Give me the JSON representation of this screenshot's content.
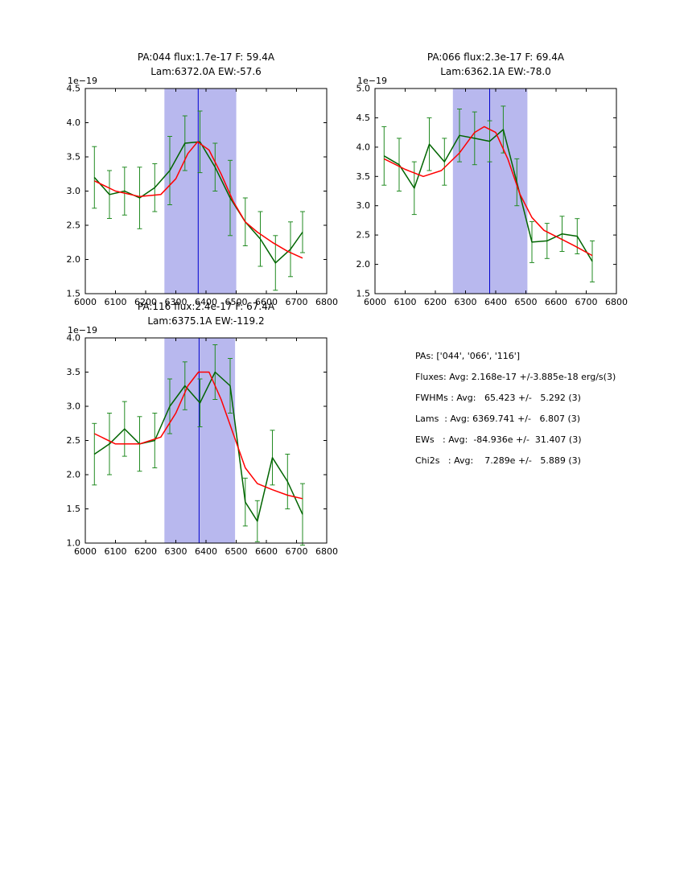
{
  "figure": {
    "background": "#ffffff"
  },
  "colors": {
    "data_line": "#006400",
    "error_bar": "#228b22",
    "fit_line": "#ff0000",
    "band_fill": "#b8b8ee",
    "vline": "#0000cd",
    "frame": "#000000",
    "text": "#000000"
  },
  "chart_data": [
    {
      "type": "line",
      "title_line1": "PA:044 flux:1.7e-17 F: 59.4A",
      "title_line2": "Lam:6372.0A EW:-57.6",
      "offset_label": "1e−19",
      "xlim": [
        6000,
        6800
      ],
      "ylim": [
        1.5,
        4.5
      ],
      "xticks": [
        "6000",
        "6100",
        "6200",
        "6300",
        "6400",
        "6500",
        "6600",
        "6700",
        "6800"
      ],
      "yticks": [
        "1.5",
        "2.0",
        "2.5",
        "3.0",
        "3.5",
        "4.0",
        "4.5"
      ],
      "band": [
        6262,
        6500
      ],
      "vline": 6374,
      "legend": "none",
      "series": [
        {
          "name": "spectrum",
          "color_key": "data_line",
          "x": [
            6030,
            6080,
            6130,
            6180,
            6230,
            6280,
            6330,
            6380,
            6430,
            6480,
            6530,
            6580,
            6630,
            6680,
            6720
          ],
          "y": [
            3.2,
            2.95,
            3.0,
            2.9,
            3.05,
            3.3,
            3.7,
            3.72,
            3.35,
            2.9,
            2.55,
            2.3,
            1.95,
            2.15,
            2.4
          ],
          "yerr": [
            0.45,
            0.35,
            0.35,
            0.45,
            0.35,
            0.5,
            0.4,
            0.45,
            0.35,
            0.55,
            0.35,
            0.4,
            0.4,
            0.4,
            0.3
          ]
        },
        {
          "name": "fit",
          "color_key": "fit_line",
          "x": [
            6030,
            6100,
            6180,
            6250,
            6300,
            6340,
            6372,
            6410,
            6450,
            6490,
            6530,
            6570,
            6620,
            6670,
            6720
          ],
          "y": [
            3.15,
            3.0,
            2.92,
            2.95,
            3.18,
            3.55,
            3.72,
            3.6,
            3.25,
            2.85,
            2.55,
            2.4,
            2.25,
            2.12,
            2.02
          ]
        }
      ]
    },
    {
      "type": "line",
      "title_line1": "PA:066 flux:2.3e-17 F: 69.4A",
      "title_line2": "Lam:6362.1A EW:-78.0",
      "offset_label": "1e−19",
      "xlim": [
        6000,
        6800
      ],
      "ylim": [
        1.5,
        5.0
      ],
      "xticks": [
        "6000",
        "6100",
        "6200",
        "6300",
        "6400",
        "6500",
        "6600",
        "6700",
        "6800"
      ],
      "yticks": [
        "1.5",
        "2.0",
        "2.5",
        "3.0",
        "3.5",
        "4.0",
        "4.5",
        "5.0"
      ],
      "band": [
        6258,
        6505
      ],
      "vline": 6380,
      "legend": "none",
      "series": [
        {
          "name": "spectrum",
          "color_key": "data_line",
          "x": [
            6030,
            6080,
            6130,
            6180,
            6230,
            6280,
            6330,
            6380,
            6425,
            6470,
            6520,
            6570,
            6620,
            6670,
            6720
          ],
          "y": [
            3.85,
            3.7,
            3.3,
            4.05,
            3.75,
            4.2,
            4.15,
            4.1,
            4.3,
            3.4,
            2.38,
            2.4,
            2.52,
            2.48,
            2.05
          ],
          "yerr": [
            0.5,
            0.45,
            0.45,
            0.45,
            0.4,
            0.45,
            0.45,
            0.35,
            0.4,
            0.4,
            0.35,
            0.3,
            0.3,
            0.3,
            0.35
          ]
        },
        {
          "name": "fit",
          "color_key": "fit_line",
          "x": [
            6030,
            6100,
            6160,
            6220,
            6280,
            6330,
            6362,
            6400,
            6440,
            6480,
            6520,
            6560,
            6610,
            6660,
            6720
          ],
          "y": [
            3.8,
            3.62,
            3.5,
            3.6,
            3.9,
            4.25,
            4.35,
            4.25,
            3.8,
            3.2,
            2.8,
            2.58,
            2.45,
            2.32,
            2.15
          ]
        }
      ]
    },
    {
      "type": "line",
      "title_line1": "PA:116 flux:2.4e-17 F: 67.4A",
      "title_line2": "Lam:6375.1A EW:-119.2",
      "offset_label": "1e−19",
      "xlim": [
        6000,
        6800
      ],
      "ylim": [
        1.0,
        4.0
      ],
      "xticks": [
        "6000",
        "6100",
        "6200",
        "6300",
        "6400",
        "6500",
        "6600",
        "6700",
        "6800"
      ],
      "yticks": [
        "1.0",
        "1.5",
        "2.0",
        "2.5",
        "3.0",
        "3.5",
        "4.0"
      ],
      "band": [
        6262,
        6496
      ],
      "vline": 6377,
      "legend": "none",
      "series": [
        {
          "name": "spectrum",
          "color_key": "data_line",
          "x": [
            6030,
            6080,
            6130,
            6180,
            6230,
            6280,
            6330,
            6380,
            6430,
            6480,
            6530,
            6570,
            6620,
            6670,
            6720
          ],
          "y": [
            2.3,
            2.45,
            2.67,
            2.45,
            2.5,
            3.0,
            3.3,
            3.05,
            3.5,
            3.3,
            1.6,
            1.32,
            2.25,
            1.9,
            1.42
          ],
          "yerr": [
            0.45,
            0.45,
            0.4,
            0.4,
            0.4,
            0.4,
            0.35,
            0.35,
            0.4,
            0.4,
            0.35,
            0.3,
            0.4,
            0.4,
            0.45
          ]
        },
        {
          "name": "fit",
          "color_key": "fit_line",
          "x": [
            6030,
            6100,
            6180,
            6250,
            6300,
            6340,
            6375,
            6410,
            6450,
            6490,
            6530,
            6570,
            6620,
            6670,
            6720
          ],
          "y": [
            2.6,
            2.45,
            2.45,
            2.55,
            2.9,
            3.3,
            3.5,
            3.5,
            3.1,
            2.6,
            2.1,
            1.87,
            1.78,
            1.7,
            1.65
          ]
        }
      ]
    }
  ],
  "stats": {
    "lines": [
      "PAs: ['044', '066', '116']",
      "Fluxes: Avg: 2.168e-17 +/-3.885e-18 erg/s(3)",
      "FWHMs : Avg:   65.423 +/-   5.292 (3)",
      "Lams  : Avg: 6369.741 +/-   6.807 (3)",
      "EWs   : Avg:  -84.936e +/-  31.407 (3)",
      "Chi2s   : Avg:    7.289e +/-   5.889 (3)"
    ]
  }
}
